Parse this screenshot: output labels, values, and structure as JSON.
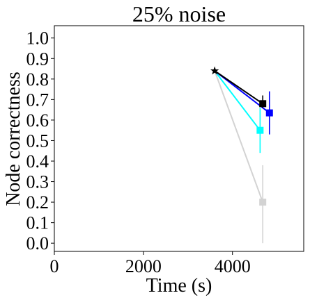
{
  "chart_data": {
    "type": "scatter",
    "title": "25% noise",
    "xlabel": "Time (s)",
    "ylabel": "Node correctness",
    "xlim": [
      0,
      5600
    ],
    "ylim": [
      -0.04,
      1.06
    ],
    "xticks": [
      0,
      2000,
      4000
    ],
    "xtick_labels": [
      "0",
      "2000",
      "4000"
    ],
    "yticks": [
      0.0,
      0.1,
      0.2,
      0.3,
      0.4,
      0.5,
      0.6,
      0.7,
      0.8,
      0.9,
      1.0
    ],
    "ytick_labels": [
      "0.0",
      "0.1",
      "0.2",
      "0.3",
      "0.4",
      "0.5",
      "0.6",
      "0.7",
      "0.8",
      "0.9",
      "1.0"
    ],
    "grid": false,
    "origin": {
      "x": 3600,
      "y": 0.84,
      "marker": "star",
      "color": "#000000"
    },
    "series": [
      {
        "color": "#d3d3d3",
        "x": 4680,
        "y": 0.2,
        "yerr_low": 0.0,
        "yerr_high": 0.38,
        "marker": "square"
      },
      {
        "color": "#00ffff",
        "x": 4620,
        "y": 0.55,
        "yerr_low": 0.44,
        "yerr_high": 0.66,
        "marker": "square"
      },
      {
        "color": "#0000ff",
        "x": 4830,
        "y": 0.635,
        "yerr_low": 0.53,
        "yerr_high": 0.74,
        "marker": "square"
      },
      {
        "color": "#000000",
        "x": 4680,
        "y": 0.68,
        "yerr_low": 0.66,
        "yerr_high": 0.72,
        "marker": "square"
      }
    ]
  }
}
